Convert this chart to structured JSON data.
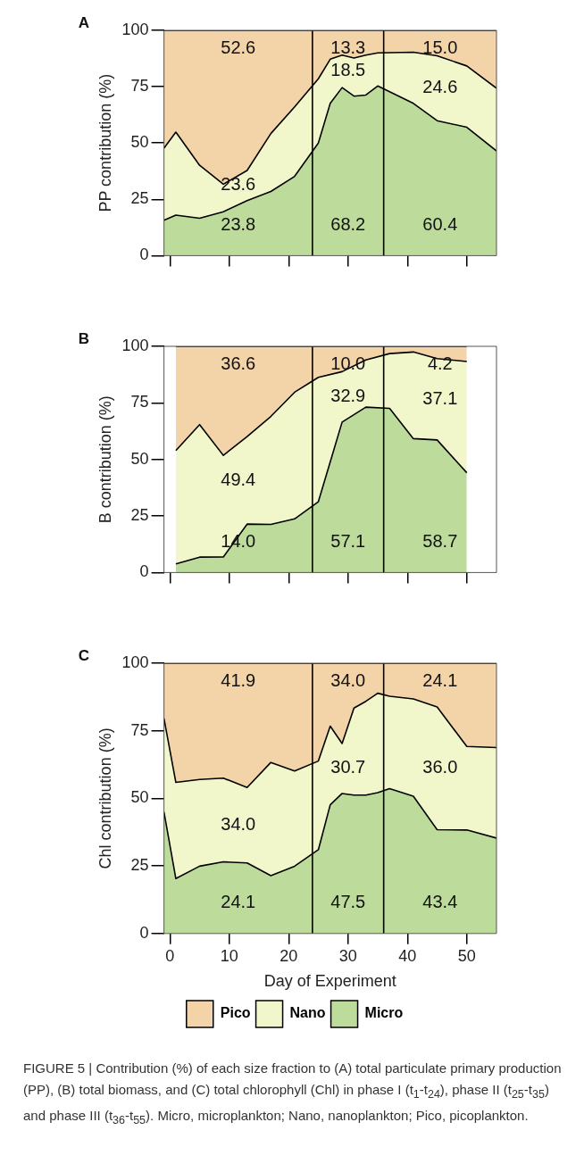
{
  "chart_data": [
    {
      "type": "area",
      "title": "A",
      "ylabel": "PP contribution (%)",
      "stacked": true,
      "tick_labels": "y",
      "grid": false,
      "legend": false,
      "marker": "none",
      "x": [
        -1,
        1,
        5,
        9,
        13,
        17,
        21,
        25,
        27,
        29,
        31,
        33,
        35,
        41,
        45,
        50,
        55
      ],
      "series": [
        {
          "color": "#bddc9c",
          "values": [
            15.7,
            18.0,
            16.6,
            19.5,
            24.4,
            28.5,
            35.2,
            50.0,
            67.6,
            74.6,
            70.8,
            71.3,
            75.3,
            67.6,
            59.9,
            57.0,
            46.5
          ]
        },
        {
          "color": "#f2f7cb",
          "values": [
            32.0,
            36.8,
            23.5,
            12.2,
            13.4,
            25.7,
            30.8,
            28.5,
            19.6,
            14.4,
            16.9,
            17.7,
            14.7,
            22.7,
            28.8,
            27.2,
            27.8
          ]
        },
        {
          "color": "#f3d3a8",
          "values": [
            52.3,
            45.2,
            59.9,
            68.3,
            62.2,
            45.8,
            34.0,
            21.5,
            12.8,
            11.0,
            12.3,
            11.0,
            10.0,
            9.7,
            11.3,
            15.8,
            25.7
          ]
        }
      ],
      "xlim": [
        -1,
        55
      ],
      "xticks": [
        {
          "value": 0,
          "label": null
        },
        {
          "value": 10,
          "label": null
        },
        {
          "value": 20,
          "label": null
        },
        {
          "value": 30,
          "label": null
        },
        {
          "value": 40,
          "label": null
        },
        {
          "value": 50,
          "label": null
        }
      ],
      "ylim": [
        0,
        100
      ],
      "yticks": [
        0,
        25,
        50,
        75,
        100
      ],
      "ref_lines": [
        {
          "axis": "x",
          "value": 24,
          "color": "#000000"
        },
        {
          "axis": "x",
          "value": 36,
          "color": "#000000"
        }
      ],
      "annotations": [
        "52.6",
        "13.3",
        "15.0",
        "23.6",
        "18.5",
        "24.6",
        "23.8",
        "68.2",
        "60.4"
      ]
    },
    {
      "type": "area",
      "title": "B",
      "ylabel": "B contribution (%)",
      "stacked": true,
      "tick_labels": "y",
      "grid": false,
      "legend": false,
      "marker": "none",
      "x": [
        1,
        5,
        9,
        13,
        17,
        21,
        25,
        29,
        33,
        37,
        41,
        45,
        50
      ],
      "series": [
        {
          "color": "#bddc9c",
          "values": [
            3.8,
            6.8,
            6.9,
            21.4,
            21.3,
            23.7,
            31.3,
            66.5,
            73.1,
            72.6,
            59.2,
            58.6,
            44.1
          ]
        },
        {
          "color": "#f2f7cb",
          "values": [
            50.1,
            58.6,
            44.9,
            38.7,
            47.7,
            56.0,
            55.0,
            22.3,
            20.9,
            24.2,
            38.3,
            36.0,
            49.2
          ]
        },
        {
          "color": "#f3d3a8",
          "values": [
            46.1,
            34.6,
            48.2,
            39.9,
            31.0,
            20.3,
            13.7,
            11.2,
            6.0,
            3.2,
            2.5,
            5.4,
            6.7
          ]
        }
      ],
      "xlim": [
        -1,
        55
      ],
      "xticks": [
        {
          "value": 0,
          "label": null
        },
        {
          "value": 10,
          "label": null
        },
        {
          "value": 20,
          "label": null
        },
        {
          "value": 30,
          "label": null
        },
        {
          "value": 40,
          "label": null
        },
        {
          "value": 50,
          "label": null
        }
      ],
      "ylim": [
        0,
        100
      ],
      "yticks": [
        0,
        25,
        50,
        75,
        100
      ],
      "ref_lines": [
        {
          "axis": "x",
          "value": 24,
          "color": "#000000"
        },
        {
          "axis": "x",
          "value": 36,
          "color": "#000000"
        }
      ],
      "annotations": [
        "36.6",
        "10.0",
        "4.2",
        "49.4",
        "32.9",
        "37.1",
        "14.0",
        "57.1",
        "58.7"
      ]
    },
    {
      "type": "area",
      "title": "C",
      "ylabel": "Chl contribution (%)",
      "xlabel": "Day of Experiment",
      "stacked": true,
      "grid": false,
      "legend": "bottom",
      "marker": "none",
      "x": [
        -1,
        1,
        5,
        9,
        13,
        17,
        21,
        25,
        27,
        29,
        31,
        33,
        35,
        37,
        41,
        45,
        50,
        55
      ],
      "series": [
        {
          "name": "Micro",
          "color": "#bddc9c",
          "values": [
            45.0,
            20.3,
            24.9,
            26.5,
            26.1,
            21.4,
            24.9,
            31.0,
            47.6,
            51.8,
            51.2,
            51.2,
            52.1,
            53.6,
            50.8,
            38.4,
            38.3,
            35.3
          ]
        },
        {
          "name": "Nano",
          "color": "#f2f7cb",
          "values": [
            34.6,
            35.6,
            32.1,
            31.0,
            27.9,
            41.9,
            35.2,
            32.8,
            29.1,
            18.5,
            32.2,
            34.7,
            36.8,
            34.2,
            36.0,
            45.4,
            30.9,
            33.5
          ]
        },
        {
          "name": "Pico",
          "color": "#f3d3a8",
          "values": [
            20.4,
            44.1,
            43.0,
            42.5,
            46.0,
            36.7,
            39.9,
            36.2,
            23.3,
            29.7,
            16.6,
            14.1,
            11.1,
            12.2,
            13.2,
            16.2,
            30.8,
            31.2
          ]
        }
      ],
      "xlim": [
        -1,
        55
      ],
      "xticks": [
        0,
        10,
        20,
        30,
        40,
        50
      ],
      "ylim": [
        0,
        100
      ],
      "yticks": [
        0,
        25,
        50,
        75,
        100
      ],
      "ref_lines": [
        {
          "axis": "x",
          "value": 24,
          "color": "#000000"
        },
        {
          "axis": "x",
          "value": 36,
          "color": "#000000"
        }
      ],
      "annotations": [
        "41.9",
        "34.0",
        "24.1",
        "34.0",
        "30.7",
        "36.0",
        "24.1",
        "47.5",
        "43.4",
        "FIGURE 5 | Contribution (%) of each size fraction to (A) total particulate primary production (PP), (B) total biomass, and (C) total chlorophyll (Chl) in phase I (t$_{1}$-t$_{24}$), phase II (t$_{25}$-t$_{35}$) and phase III (t$_{36}$-t$_{55}$). Micro, microplankton; Nano, nanoplankton; Pico, picoplankton."
      ]
    }
  ]
}
